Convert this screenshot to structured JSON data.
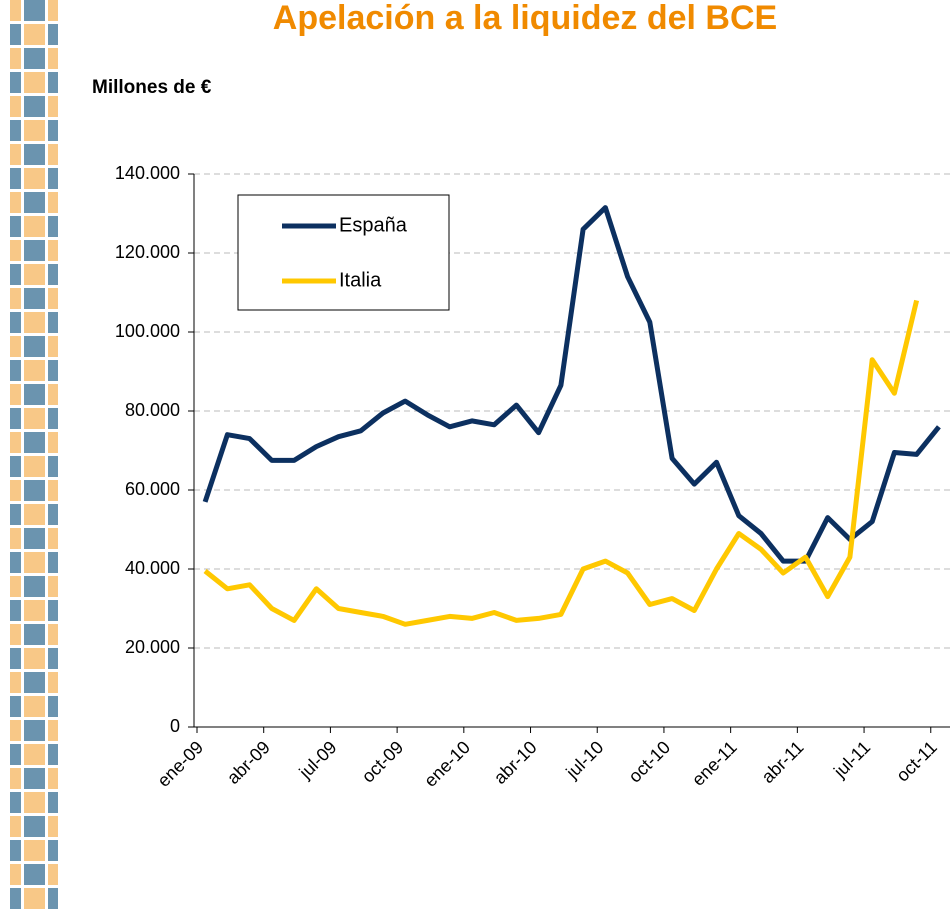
{
  "chart_data": {
    "type": "line",
    "title": "Apelación a la liquidez del BCE",
    "y_label": "Millones de €",
    "categories": [
      "ene-09",
      null,
      null,
      "abr-09",
      null,
      null,
      "jul-09",
      null,
      null,
      "oct-09",
      null,
      null,
      "ene-10",
      null,
      null,
      "abr-10",
      null,
      null,
      "jul-10",
      null,
      null,
      "oct-10",
      null,
      null,
      "ene-11",
      null,
      null,
      "abr-11",
      null,
      null,
      "jul-11",
      null,
      null,
      "oct-11"
    ],
    "series": [
      {
        "name": "España",
        "color": "#0c3060",
        "values": [
          57000,
          74000,
          73000,
          67500,
          67500,
          71000,
          73500,
          75000,
          79500,
          82500,
          79000,
          76000,
          77500,
          76500,
          81500,
          74500,
          86500,
          126000,
          131500,
          114000,
          102500,
          68000,
          61500,
          67000,
          53500,
          49000,
          42000,
          42000,
          53000,
          47500,
          52000,
          69500,
          69000,
          76000
        ]
      },
      {
        "name": "Italia",
        "color": "#ffc800",
        "values": [
          39500,
          35000,
          36000,
          30000,
          27000,
          35000,
          30000,
          29000,
          28000,
          26000,
          27000,
          28000,
          27500,
          29000,
          27000,
          27500,
          28500,
          40000,
          42000,
          39000,
          31000,
          32500,
          29500,
          40000,
          49000,
          45000,
          39000,
          43000,
          33000,
          43000,
          93000,
          84500,
          108000,
          null
        ]
      }
    ],
    "ylim": [
      0,
      140000
    ],
    "yticks": [
      0,
      {
        "value": 20000,
        "label": "20.000"
      },
      {
        "value": 40000,
        "label": "40.000"
      },
      {
        "value": 60000,
        "label": "60.000"
      },
      {
        "value": 80000,
        "label": "80.000"
      },
      {
        "value": 100000,
        "label": "100.000"
      },
      {
        "value": 120000,
        "label": "120.000"
      },
      {
        "value": 140000,
        "label": "140.000"
      }
    ],
    "grid": true,
    "legend": "upper left"
  }
}
